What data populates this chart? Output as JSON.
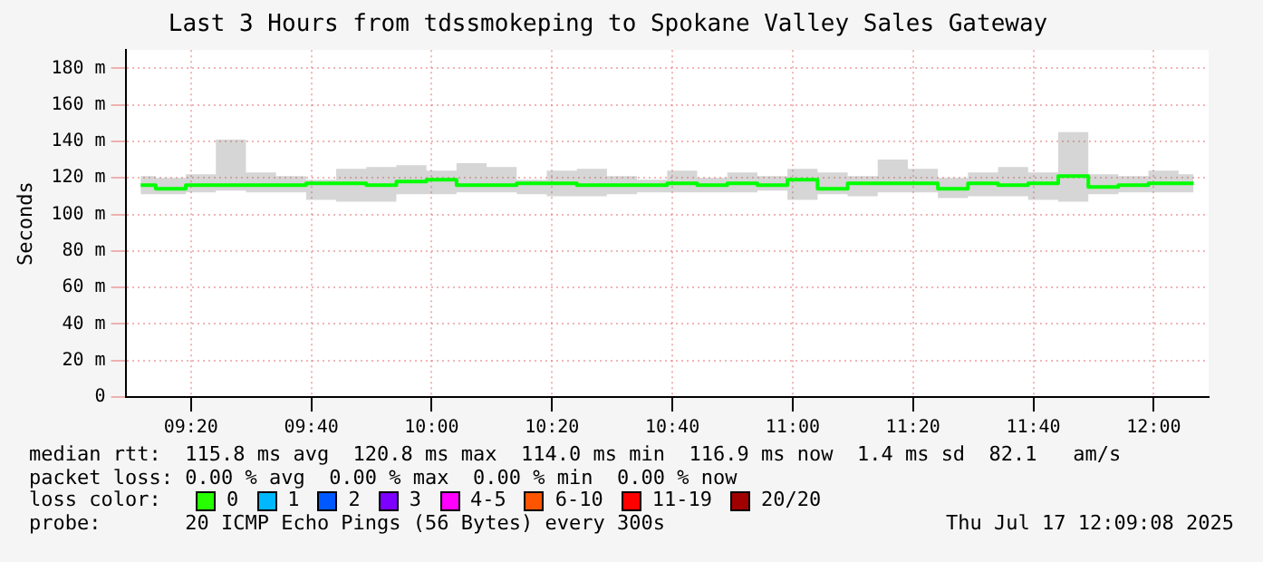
{
  "chart_data": {
    "type": "step",
    "title": "Last 3 Hours from tdssmokeping to Spokane Valley Sales Gateway",
    "ylabel": "Seconds",
    "series": [
      {
        "color": "#00ff00",
        "x": [
          9.1939,
          9.2772,
          9.3606,
          9.4439,
          9.5272,
          9.6106,
          9.6939,
          9.7772,
          9.8606,
          9.9439,
          10.0272,
          10.1106,
          10.1939,
          10.2772,
          10.3606,
          10.4439,
          10.5272,
          10.6106,
          10.6939,
          10.7772,
          10.8606,
          10.9439,
          11.0272,
          11.1106,
          11.1939,
          11.2772,
          11.3606,
          11.4439,
          11.5272,
          11.6106,
          11.6939,
          11.7772,
          11.8606,
          11.9439,
          12.0272,
          12.1106
        ],
        "values": [
          116,
          114,
          116,
          116,
          116,
          116,
          117,
          117,
          116,
          118,
          119,
          116,
          116,
          117,
          117,
          116,
          116,
          116,
          117,
          116,
          117,
          116,
          119,
          114,
          117,
          117,
          117,
          114,
          117,
          116,
          117,
          121,
          115,
          116,
          117,
          117
        ],
        "lower": [
          111,
          111,
          112,
          113,
          112,
          112,
          108,
          107,
          107,
          111,
          111,
          112,
          112,
          111,
          110,
          110,
          111,
          112,
          112,
          112,
          112,
          113,
          108,
          111,
          110,
          112,
          112,
          109,
          110,
          110,
          108,
          107,
          111,
          112,
          112,
          112
        ],
        "upper": [
          121,
          120,
          122,
          141,
          123,
          121,
          119,
          125,
          126,
          127,
          124,
          128,
          126,
          119,
          124,
          125,
          121,
          119,
          124,
          120,
          123,
          121,
          125,
          123,
          121,
          130,
          125,
          120,
          123,
          126,
          123,
          145,
          122,
          121,
          124,
          122
        ]
      }
    ],
    "xlim": [
      9.1522,
      12.1522
    ],
    "xticks": [
      {
        "value": 9.3333,
        "label": "09:20"
      },
      {
        "value": 9.6667,
        "label": "09:40"
      },
      {
        "value": 10,
        "label": "10:00"
      },
      {
        "value": 10.3333,
        "label": "10:20"
      },
      {
        "value": 10.6667,
        "label": "10:40"
      },
      {
        "value": 11,
        "label": "11:00"
      },
      {
        "value": 11.3333,
        "label": "11:20"
      },
      {
        "value": 11.6667,
        "label": "11:40"
      },
      {
        "value": 12,
        "label": "12:00"
      }
    ],
    "ylim": [
      0,
      190
    ],
    "yticks": [
      0,
      {
        "value": 20,
        "label": "20 m"
      },
      {
        "value": 40,
        "label": "40 m"
      },
      {
        "value": 60,
        "label": "60 m"
      },
      {
        "value": 80,
        "label": "80 m"
      },
      {
        "value": 100,
        "label": "100 m"
      },
      {
        "value": 120,
        "label": "120 m"
      },
      {
        "value": 140,
        "label": "140 m"
      },
      {
        "value": 160,
        "label": "160 m"
      },
      {
        "value": 180,
        "label": "180 m"
      }
    ],
    "grid": true,
    "legend": false,
    "annotations": [
      "median rtt:  115.8 ms avg  120.8 ms max  114.0 ms min  116.9 ms now  1.4 ms sd  82.1   am/s",
      "packet loss: 0.00 % avg  0.00 % max  0.00 % min  0.00 % now",
      "loss color:",
      "0",
      "1",
      "2",
      "3",
      "4-5",
      "6-10",
      "11-19",
      "20/20",
      "probe:       20 ICMP Echo Pings (56 Bytes) every 300s",
      "Thu Jul 17 12:09:08 2025"
    ]
  }
}
